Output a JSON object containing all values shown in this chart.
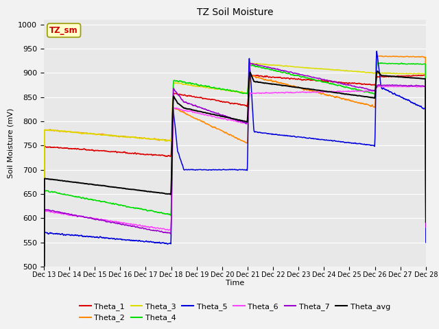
{
  "title": "TZ Soil Moisture",
  "xlabel": "Time",
  "ylabel": "Soil Moisture (mV)",
  "ylim": [
    500,
    1010
  ],
  "yticks": [
    500,
    550,
    600,
    650,
    700,
    750,
    800,
    850,
    900,
    950,
    1000
  ],
  "plot_bg": "#e8e8e8",
  "fig_bg": "#f2f2f2",
  "label_box": "TZ_sm",
  "label_box_color": "#ffffcc",
  "label_box_text": "#cc0000",
  "series_colors": {
    "Theta_1": "#dd0000",
    "Theta_2": "#ff8800",
    "Theta_3": "#dddd00",
    "Theta_4": "#00dd00",
    "Theta_5": "#0000dd",
    "Theta_6": "#ff44ff",
    "Theta_7": "#9900cc",
    "Theta_avg": "#000000"
  },
  "x_tick_labels": [
    "Dec 13",
    "Dec 14",
    "Dec 15",
    "Dec 16",
    "Dec 17",
    "Dec 18",
    "Dec 19",
    "Dec 20",
    "Dec 21",
    "Dec 22",
    "Dec 23",
    "Dec 24",
    "Dec 25",
    "Dec 26",
    "Dec 27",
    "Dec 28"
  ],
  "n_points": 2000
}
